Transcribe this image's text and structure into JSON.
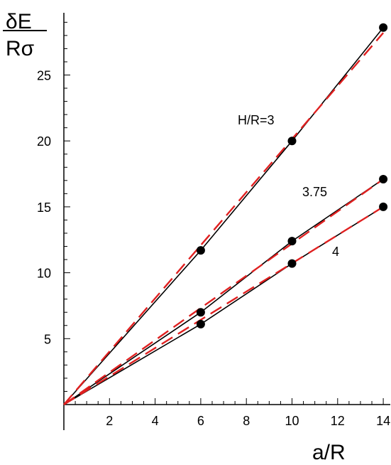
{
  "chart_data": {
    "type": "line",
    "ylabel_top": "δE",
    "ylabel_bottom": "Rσ",
    "xlabel": "a/R",
    "xlim": [
      0,
      14.5
    ],
    "ylim": [
      0,
      29
    ],
    "x_ticks": [
      2,
      4,
      6,
      8,
      10,
      12,
      14
    ],
    "y_ticks": [
      5,
      10,
      15,
      20,
      25
    ],
    "grid": false,
    "annotations": [
      "H/R=3",
      "3.75",
      "4"
    ],
    "series": [
      {
        "kind": "exact",
        "color": "#000000",
        "style": "solid",
        "x": [
          0,
          6,
          10,
          14
        ],
        "y": [
          0,
          11.7,
          20.0,
          28.6
        ]
      },
      {
        "kind": "exact",
        "color": "#000000",
        "style": "solid",
        "x": [
          0,
          6,
          10,
          14
        ],
        "y": [
          0,
          7.0,
          12.4,
          17.1
        ]
      },
      {
        "kind": "exact",
        "color": "#000000",
        "style": "solid",
        "x": [
          0,
          6,
          10,
          14
        ],
        "y": [
          0,
          6.1,
          10.7,
          15.0
        ]
      },
      {
        "kind": "approx",
        "color": "#e02020",
        "style": "dashed",
        "x": [
          0,
          14
        ],
        "y": [
          0,
          28.2
        ]
      },
      {
        "kind": "approx",
        "color": "#e02020",
        "style": "dashed",
        "x": [
          0,
          14
        ],
        "y": [
          0,
          17.1
        ]
      },
      {
        "kind": "approx",
        "color": "#e02020",
        "style": "dashed",
        "x": [
          0,
          14
        ],
        "y": [
          0,
          15.0
        ]
      }
    ],
    "markers": [
      {
        "x": 6,
        "y": 11.7
      },
      {
        "x": 10,
        "y": 20.0
      },
      {
        "x": 14,
        "y": 28.6
      },
      {
        "x": 6,
        "y": 7.0
      },
      {
        "x": 10,
        "y": 12.4
      },
      {
        "x": 14,
        "y": 17.1
      },
      {
        "x": 6,
        "y": 6.1
      },
      {
        "x": 10,
        "y": 10.7
      },
      {
        "x": 14,
        "y": 15.0
      }
    ]
  }
}
